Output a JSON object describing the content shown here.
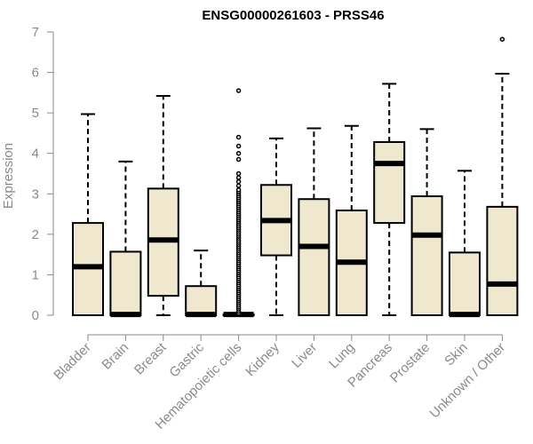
{
  "chart_data": {
    "type": "box",
    "title": "ENSG00000261603 - PRSS46",
    "xlabel": "",
    "ylabel": "Expression",
    "ylim": [
      0,
      7
    ],
    "yticks": [
      0,
      1,
      2,
      3,
      4,
      5,
      6,
      7
    ],
    "grid": false,
    "legend": "none",
    "colors": {
      "box_fill": "#efe8cf",
      "box_stroke": "#000000",
      "axis": "#8a8a8a",
      "title": "#000000"
    },
    "categories": [
      "Bladder",
      "Brain",
      "Breast",
      "Gastric",
      "Hematopoietic cells",
      "Kidney",
      "Liver",
      "Lung",
      "Pancreas",
      "Prostate",
      "Skin",
      "Unknown / Other"
    ],
    "boxes": [
      {
        "category": "Bladder",
        "min": 0,
        "q1": 0,
        "median": 1.2,
        "q3": 2.28,
        "max": 4.97,
        "outliers": []
      },
      {
        "category": "Brain",
        "min": 0,
        "q1": 0,
        "median": 0.02,
        "q3": 1.57,
        "max": 3.8,
        "outliers": []
      },
      {
        "category": "Breast",
        "min": 0,
        "q1": 0.48,
        "median": 1.86,
        "q3": 3.13,
        "max": 5.42,
        "outliers": []
      },
      {
        "category": "Gastric",
        "min": 0,
        "q1": 0,
        "median": 0.02,
        "q3": 0.72,
        "max": 1.6,
        "outliers": []
      },
      {
        "category": "Hematopoietic cells",
        "min": 0,
        "q1": 0,
        "median": 0.02,
        "q3": 0.02,
        "max": 0.02,
        "outliers": [
          0.05,
          0.1,
          0.15,
          0.2,
          0.25,
          0.3,
          0.35,
          0.4,
          0.45,
          0.5,
          0.55,
          0.6,
          0.65,
          0.7,
          0.75,
          0.8,
          0.85,
          0.9,
          0.95,
          1.0,
          1.05,
          1.1,
          1.15,
          1.2,
          1.25,
          1.3,
          1.35,
          1.4,
          1.45,
          1.5,
          1.55,
          1.6,
          1.65,
          1.7,
          1.75,
          1.8,
          1.85,
          1.9,
          1.95,
          2.0,
          2.05,
          2.1,
          2.15,
          2.2,
          2.25,
          2.3,
          2.35,
          2.4,
          2.45,
          2.5,
          2.55,
          2.6,
          2.65,
          2.7,
          2.75,
          2.8,
          2.85,
          2.9,
          2.95,
          3.0,
          3.05,
          3.1,
          3.2,
          3.3,
          3.4,
          3.5,
          3.85,
          4.0,
          4.18,
          4.4,
          5.55
        ]
      },
      {
        "category": "Kidney",
        "min": 0,
        "q1": 1.48,
        "median": 2.34,
        "q3": 3.22,
        "max": 4.37,
        "outliers": []
      },
      {
        "category": "Liver",
        "min": 0,
        "q1": 0,
        "median": 1.7,
        "q3": 2.87,
        "max": 4.62,
        "outliers": []
      },
      {
        "category": "Lung",
        "min": 0,
        "q1": 0,
        "median": 1.31,
        "q3": 2.59,
        "max": 4.68,
        "outliers": []
      },
      {
        "category": "Pancreas",
        "min": 0,
        "q1": 2.28,
        "median": 3.75,
        "q3": 4.28,
        "max": 5.72,
        "outliers": []
      },
      {
        "category": "Prostate",
        "min": 0,
        "q1": 0,
        "median": 1.98,
        "q3": 2.94,
        "max": 4.6,
        "outliers": []
      },
      {
        "category": "Skin",
        "min": 0,
        "q1": 0,
        "median": 0.02,
        "q3": 1.55,
        "max": 3.57,
        "outliers": []
      },
      {
        "category": "Unknown / Other",
        "min": 0,
        "q1": 0,
        "median": 0.77,
        "q3": 2.68,
        "max": 5.97,
        "outliers": [
          6.82
        ]
      }
    ]
  }
}
